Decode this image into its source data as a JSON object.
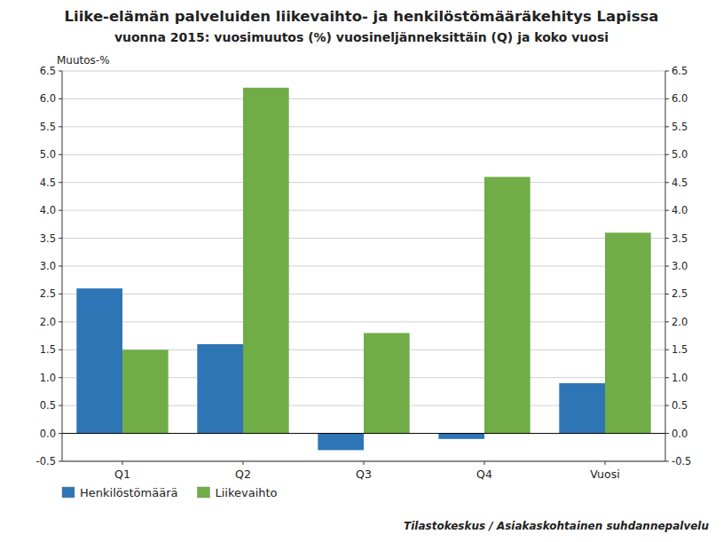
{
  "chart_data": {
    "type": "bar",
    "title": "Liike-elämän palveluiden liikevaihto- ja henkilöstömääräkehitys Lapissa",
    "subtitle": "vuonna 2015: vuosimuutos (%) vuosineljänneksittäin (Q) ja koko vuosi",
    "ylabel": "Muutos-%",
    "categories": [
      "Q1",
      "Q2",
      "Q3",
      "Q4",
      "Vuosi"
    ],
    "series": [
      {
        "name": "Henkilöstömäärä",
        "color": "#2e75b6",
        "values": [
          2.6,
          1.6,
          -0.3,
          -0.1,
          0.9
        ]
      },
      {
        "name": "Liikevaihto",
        "color": "#70ad47",
        "values": [
          1.5,
          6.2,
          1.8,
          4.6,
          3.6
        ]
      }
    ],
    "ylim": [
      -0.5,
      6.5
    ],
    "yticks": [
      -0.5,
      {
        "value": 0,
        "label": "0.0"
      },
      0.5,
      {
        "value": 1,
        "label": "1.0"
      },
      1.5,
      {
        "value": 2,
        "label": "2.0"
      },
      2.5,
      {
        "value": 3,
        "label": "3.0"
      },
      3.5,
      {
        "value": 4,
        "label": "4.0"
      },
      4.5,
      {
        "value": 5,
        "label": "5.0"
      },
      5.5,
      {
        "value": 6,
        "label": "6.0"
      },
      6.5
    ],
    "y2lim": [
      -0.5,
      6.5
    ],
    "y2ticks": [
      -0.5,
      {
        "value": 0,
        "label": "0.0"
      },
      0.5,
      {
        "value": 1,
        "label": "1.0"
      },
      1.5,
      {
        "value": 2,
        "label": "2.0"
      },
      2.5,
      {
        "value": 3,
        "label": "3.0"
      },
      3.5,
      {
        "value": 4,
        "label": "4.0"
      },
      4.5,
      {
        "value": 5,
        "label": "5.0"
      },
      5.5,
      {
        "value": 6,
        "label": "6.0"
      },
      6.5
    ],
    "annotations": [
      "Tilastokeskus / Asiakaskohtainen suhdannepalvelu"
    ],
    "grid": true,
    "legend": "lower left"
  }
}
